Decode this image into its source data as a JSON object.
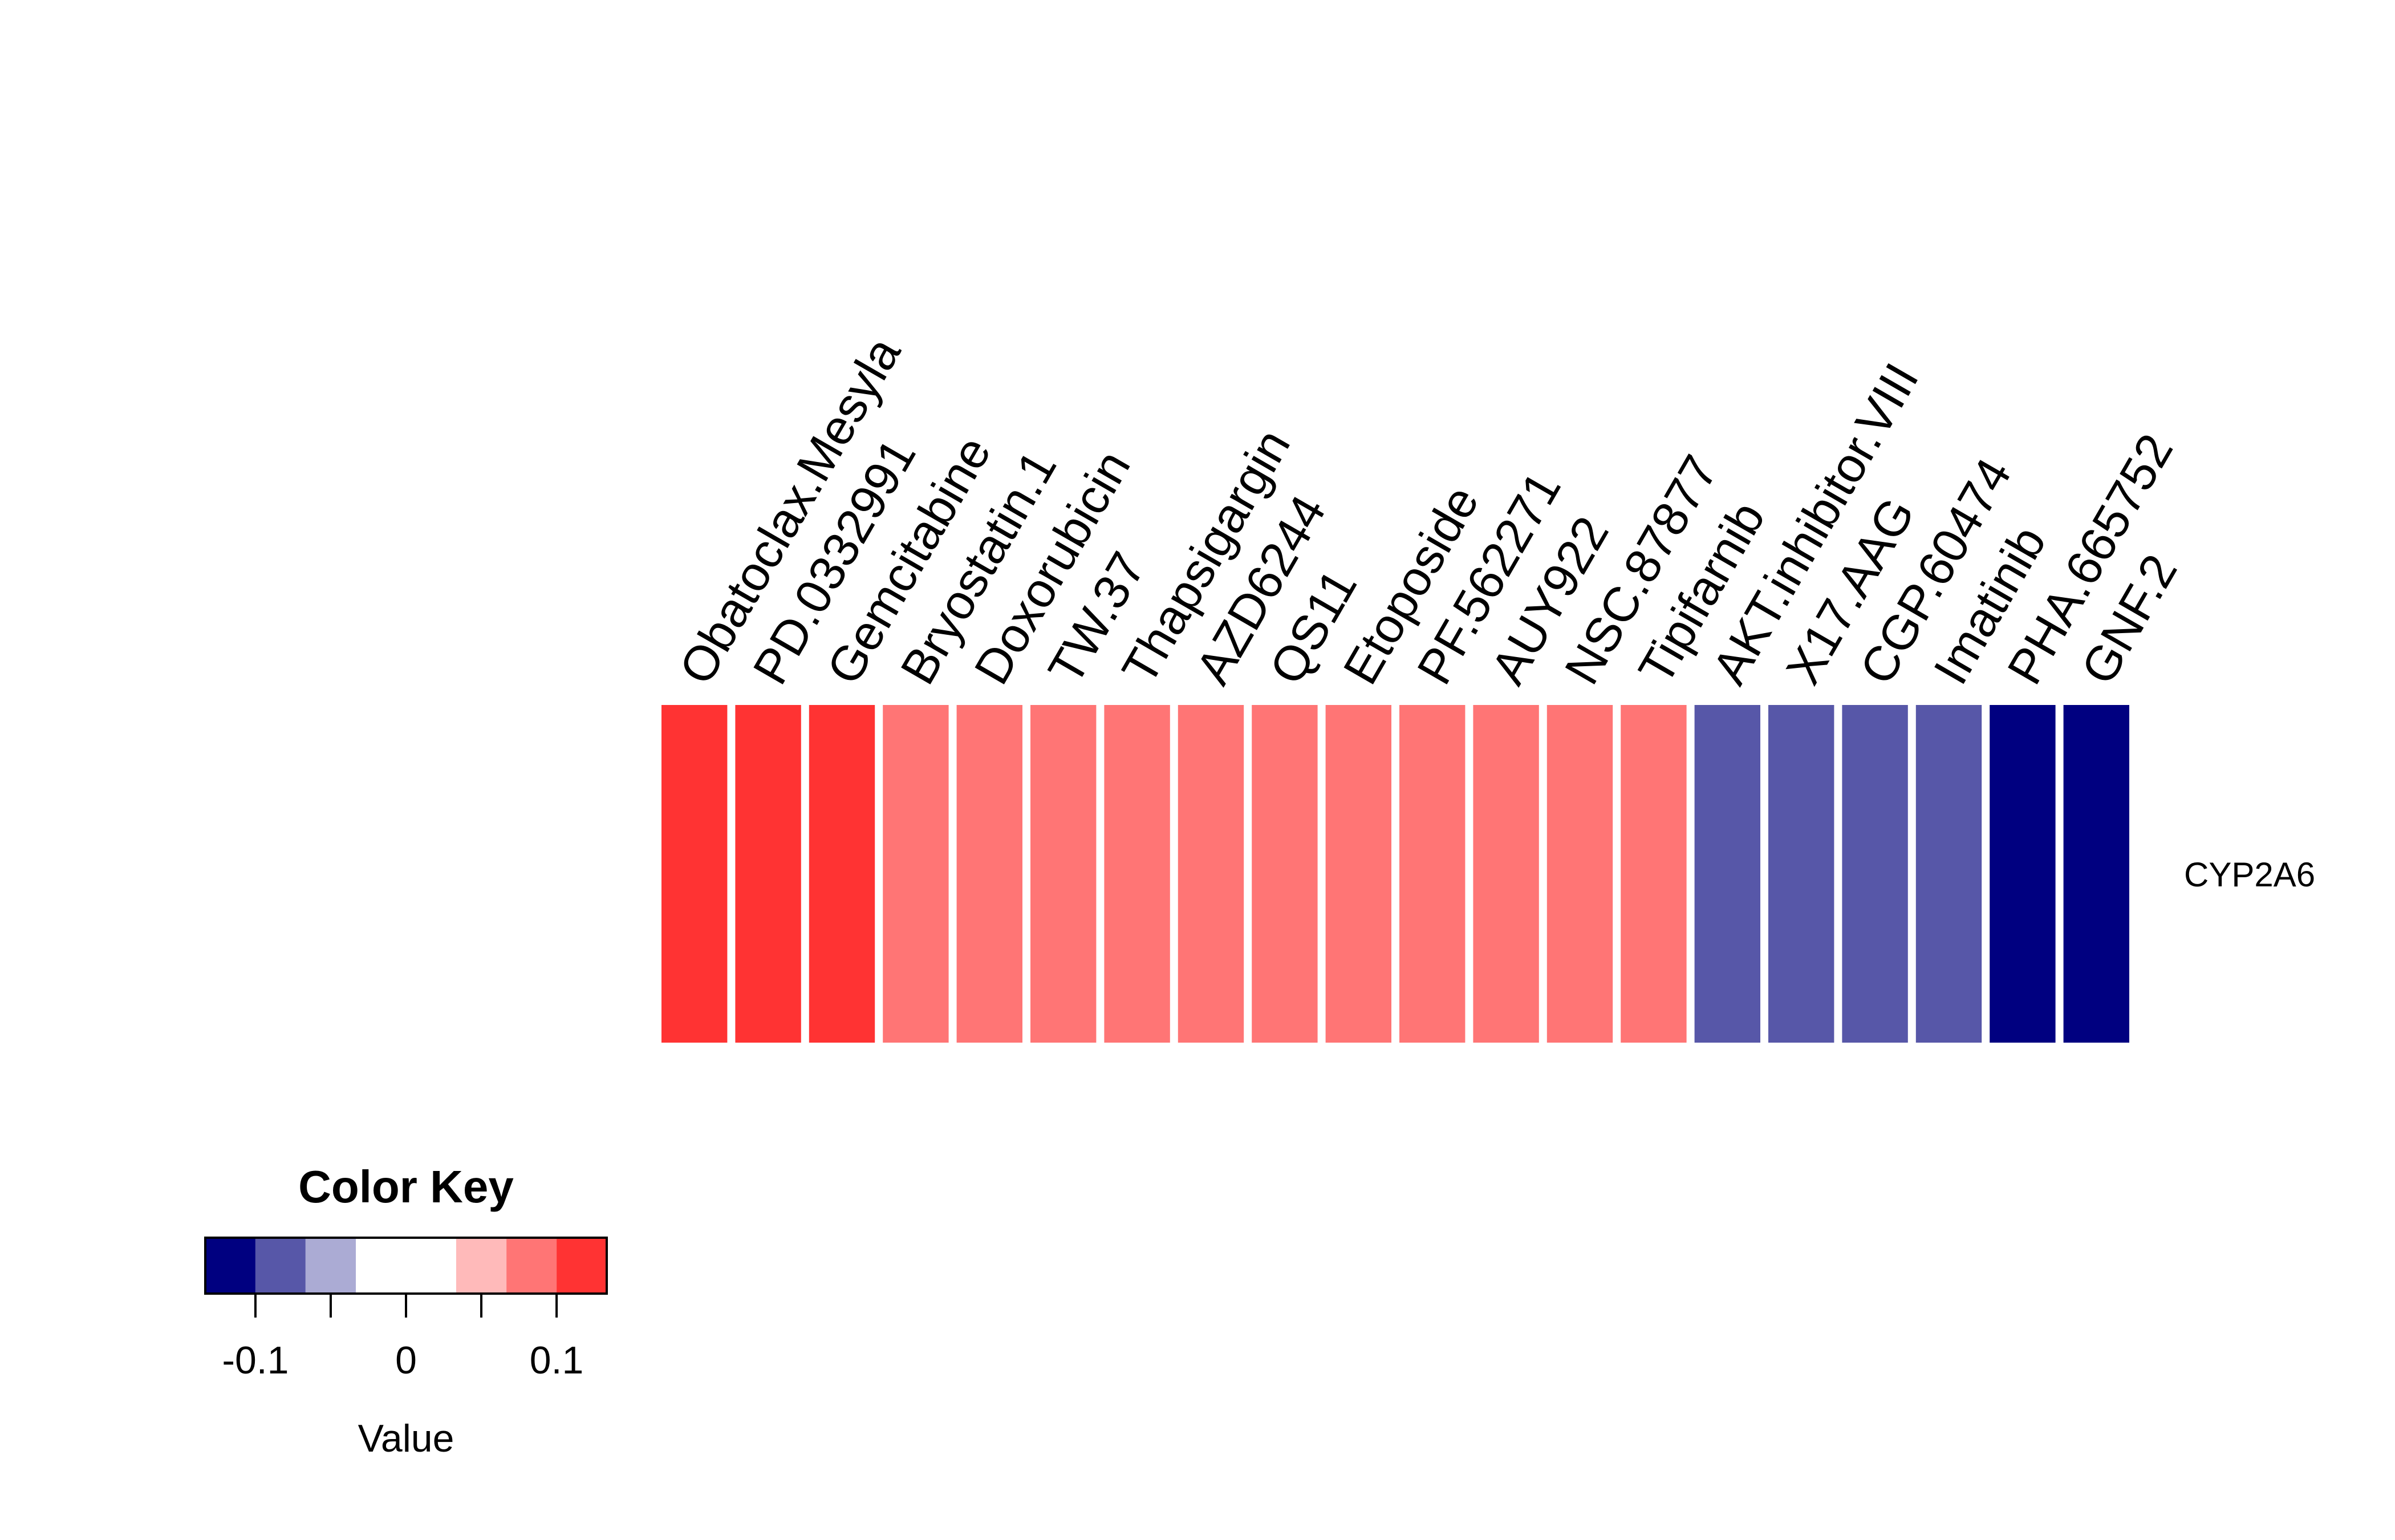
{
  "chart_data": {
    "type": "heatmap",
    "columns": [
      "Obatoclax.Mesyla",
      "PD.0332991",
      "Gemcitabine",
      "Bryostatin.1",
      "Doxorubicin",
      "TW.37",
      "Thapsigargin",
      "AZD6244",
      "QS11",
      "Etoposide",
      "PF.562271",
      "AUY922",
      "NSC.87877",
      "Tipifarnib",
      "AKT.inhibitor.VIII",
      "X17.AAG",
      "CGP.60474",
      "Imatinib",
      "PHA.665752",
      "GNF.2"
    ],
    "rows": [
      "CYP2A6"
    ],
    "values": [
      [
        0.12,
        0.12,
        0.12,
        0.08,
        0.08,
        0.08,
        0.08,
        0.08,
        0.08,
        0.08,
        0.08,
        0.08,
        0.08,
        0.08,
        -0.08,
        -0.08,
        -0.08,
        -0.08,
        -0.12,
        -0.12
      ]
    ],
    "color_key": {
      "title": "Color Key",
      "xlabel": "Value",
      "breaks": [
        -0.1333,
        -0.1,
        -0.0667,
        -0.0333,
        0.0333,
        0.0667,
        0.1,
        0.1333
      ],
      "colors": [
        "#000080",
        "#5757A8",
        "#ABABD4",
        "#FFFFFF",
        "#FFBABA",
        "#FF7575",
        "#FF3333"
      ],
      "ticks": [
        -0.1,
        -0.05,
        0,
        0.05,
        0.1
      ],
      "tick_labels": [
        "-0.1",
        "",
        "0",
        "",
        "0.1"
      ]
    }
  }
}
